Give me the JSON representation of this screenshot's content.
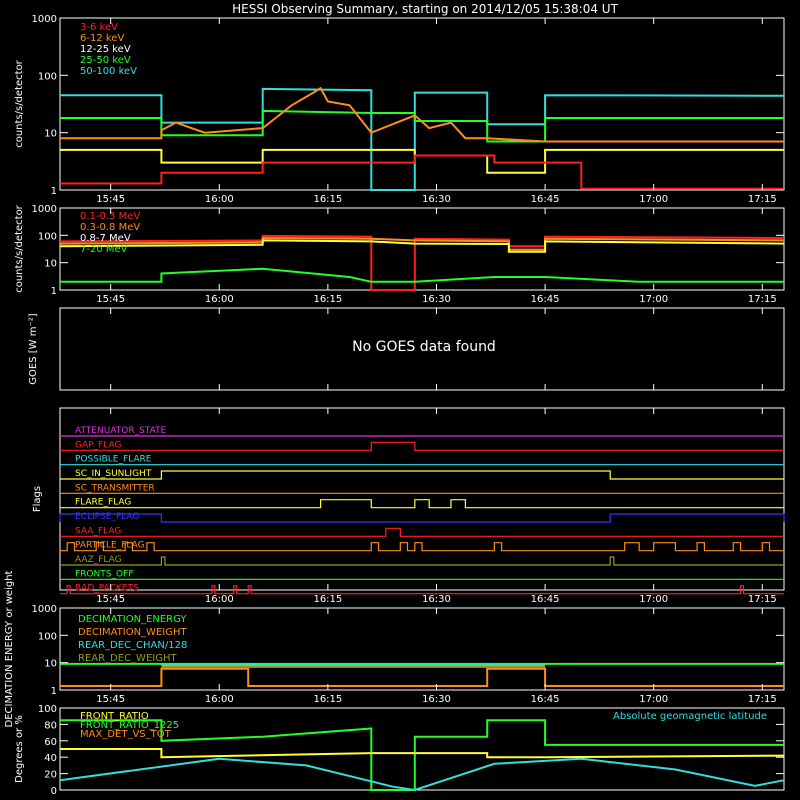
{
  "title": "HESSI Observing Summary, starting on 2014/12/05 15:38:04 UT",
  "colors": {
    "red": "#ff2020",
    "orange": "#ff8c1a",
    "yellow": "#ffff33",
    "green": "#22ff22",
    "cyan": "#33dddd",
    "magenta": "#dd33dd",
    "blue": "#3333ff",
    "olive": "#999922",
    "white": "#ffffff"
  },
  "time_axis": {
    "start_min": 0,
    "end_min": 100,
    "tick_minutes": [
      7,
      22,
      37,
      52,
      67,
      82,
      97
    ],
    "tick_labels": [
      "15:45",
      "16:00",
      "16:15",
      "16:30",
      "16:45",
      "17:00",
      "17:15"
    ]
  },
  "chart_data": [
    {
      "id": "lightcurve-low",
      "type": "line",
      "ylabel": "counts/s/detector",
      "ylog": true,
      "ylim": [
        1,
        1000
      ],
      "ytick_labels": [
        "1",
        "10",
        "100",
        "1000"
      ],
      "legend": [
        "3-6 keV",
        "6-12 keV",
        "12-25 keV",
        "25-50 keV",
        "50-100 keV"
      ],
      "legend_colors": [
        "red",
        "orange",
        "white",
        "green",
        "cyan"
      ],
      "series": [
        {
          "color": "cyan",
          "values": [
            [
              0,
              45
            ],
            [
              14,
              45
            ],
            [
              14,
              15
            ],
            [
              28,
              15
            ],
            [
              28,
              58
            ],
            [
              43,
              55
            ],
            [
              43,
              0
            ],
            [
              49,
              0
            ],
            [
              49,
              50
            ],
            [
              59,
              50
            ],
            [
              59,
              14
            ],
            [
              67,
              14
            ],
            [
              67,
              45
            ],
            [
              100,
              44
            ]
          ]
        },
        {
          "color": "green",
          "values": [
            [
              0,
              18
            ],
            [
              14,
              18
            ],
            [
              14,
              9
            ],
            [
              28,
              9
            ],
            [
              28,
              24
            ],
            [
              43,
              22
            ],
            [
              49,
              22
            ],
            [
              49,
              16
            ],
            [
              59,
              16
            ],
            [
              59,
              7
            ],
            [
              67,
              7
            ],
            [
              67,
              18
            ],
            [
              100,
              18
            ]
          ]
        },
        {
          "color": "orange",
          "values": [
            [
              0,
              8
            ],
            [
              14,
              8
            ],
            [
              14,
              11
            ],
            [
              16,
              15
            ],
            [
              20,
              10
            ],
            [
              28,
              12
            ],
            [
              32,
              30
            ],
            [
              35,
              50
            ],
            [
              36,
              60
            ],
            [
              37,
              35
            ],
            [
              40,
              30
            ],
            [
              43,
              10
            ],
            [
              49,
              20
            ],
            [
              51,
              12
            ],
            [
              54,
              15
            ],
            [
              56,
              8
            ],
            [
              59,
              8
            ],
            [
              67,
              7
            ],
            [
              100,
              7
            ]
          ]
        },
        {
          "color": "yellow",
          "values": [
            [
              0,
              5
            ],
            [
              14,
              5
            ],
            [
              14,
              3
            ],
            [
              28,
              3
            ],
            [
              28,
              5
            ],
            [
              43,
              5
            ],
            [
              49,
              5
            ],
            [
              49,
              4
            ],
            [
              59,
              4
            ],
            [
              59,
              2
            ],
            [
              67,
              2
            ],
            [
              67,
              5
            ],
            [
              100,
              5
            ]
          ]
        },
        {
          "color": "red",
          "values": [
            [
              0,
              1.3
            ],
            [
              14,
              1.3
            ],
            [
              14,
              2
            ],
            [
              28,
              2
            ],
            [
              28,
              3
            ],
            [
              43,
              3
            ],
            [
              49,
              3
            ],
            [
              49,
              4
            ],
            [
              60,
              4
            ],
            [
              60,
              3
            ],
            [
              72,
              3
            ],
            [
              72,
              1.05
            ],
            [
              100,
              1.05
            ]
          ]
        }
      ]
    },
    {
      "id": "lightcurve-high",
      "type": "line",
      "ylabel": "counts/s/detector",
      "ylog": true,
      "ylim": [
        1,
        1000
      ],
      "ytick_labels": [
        "1",
        "10",
        "100",
        "1000"
      ],
      "legend": [
        "0.1-0.3 MeV",
        "0.3-0.8 MeV",
        "0.8-7 MeV",
        "7-20 MeV"
      ],
      "legend_colors": [
        "red",
        "orange",
        "white",
        "green"
      ],
      "series": [
        {
          "color": "red",
          "values": [
            [
              0,
              60
            ],
            [
              28,
              65
            ],
            [
              28,
              95
            ],
            [
              43,
              90
            ],
            [
              43,
              0
            ],
            [
              49,
              0
            ],
            [
              49,
              75
            ],
            [
              62,
              70
            ],
            [
              62,
              40
            ],
            [
              67,
              40
            ],
            [
              67,
              90
            ],
            [
              100,
              80
            ]
          ]
        },
        {
          "color": "orange",
          "values": [
            [
              0,
              50
            ],
            [
              28,
              55
            ],
            [
              28,
              80
            ],
            [
              43,
              75
            ],
            [
              49,
              65
            ],
            [
              62,
              60
            ],
            [
              62,
              30
            ],
            [
              67,
              30
            ],
            [
              67,
              75
            ],
            [
              100,
              65
            ]
          ]
        },
        {
          "color": "yellow",
          "values": [
            [
              0,
              40
            ],
            [
              28,
              45
            ],
            [
              28,
              65
            ],
            [
              43,
              60
            ],
            [
              49,
              50
            ],
            [
              62,
              48
            ],
            [
              62,
              25
            ],
            [
              67,
              25
            ],
            [
              67,
              60
            ],
            [
              100,
              50
            ]
          ]
        },
        {
          "color": "green",
          "values": [
            [
              0,
              2
            ],
            [
              14,
              2
            ],
            [
              14,
              4
            ],
            [
              28,
              6
            ],
            [
              40,
              3
            ],
            [
              43,
              2
            ],
            [
              49,
              2
            ],
            [
              60,
              3
            ],
            [
              67,
              3
            ],
            [
              80,
              2
            ],
            [
              100,
              2
            ]
          ]
        }
      ]
    },
    {
      "id": "goes",
      "type": "line",
      "ylabel": "GOES [W m⁻²]",
      "message": "No GOES data found"
    },
    {
      "id": "flags",
      "type": "line",
      "ylabel": "Flags",
      "flags": [
        {
          "name": "ATTENUATOR_STATE",
          "color": "magenta",
          "segments": []
        },
        {
          "name": "GAP_FLAG",
          "color": "red",
          "segments": [
            [
              43,
              49
            ]
          ]
        },
        {
          "name": "POSSIBLE_FLARE",
          "color": "cyan",
          "segments": []
        },
        {
          "name": "SC_IN_SUNLIGHT",
          "color": "yellow",
          "segments": [
            [
              14,
              76
            ]
          ]
        },
        {
          "name": "SC_TRANSMITTER",
          "color": "orange",
          "segments": []
        },
        {
          "name": "FLARE_FLAG",
          "color": "yellow",
          "segments": [
            [
              36,
              43
            ],
            [
              49,
              51
            ],
            [
              54,
              56
            ]
          ]
        },
        {
          "name": "ECLIPSE_FLAG",
          "color": "blue",
          "segments": [
            [
              0,
              14
            ],
            [
              76,
              100
            ]
          ]
        },
        {
          "name": "SAA_FLAG",
          "color": "red",
          "segments": [
            [
              45,
              47
            ]
          ]
        },
        {
          "name": "PARTICLE_FLAG",
          "color": "orange",
          "segments": [
            [
              1,
              2
            ],
            [
              5,
              6
            ],
            [
              9,
              10
            ],
            [
              12,
              13
            ],
            [
              43,
              44
            ],
            [
              47,
              48
            ],
            [
              49,
              50
            ],
            [
              60,
              61
            ],
            [
              78,
              80
            ],
            [
              82,
              85
            ],
            [
              88,
              89
            ],
            [
              93,
              94
            ],
            [
              97,
              98
            ]
          ]
        },
        {
          "name": "AAZ_FLAG",
          "color": "olive",
          "segments": [
            [
              14,
              14.5
            ],
            [
              76,
              76.5
            ]
          ]
        },
        {
          "name": "FRONTS_OFF",
          "color": "green",
          "segments": []
        },
        {
          "name": "BAD_PACKETS",
          "color": "red",
          "segments": [
            [
              1,
              1.4
            ],
            [
              21,
              21.4
            ],
            [
              24,
              24.4
            ],
            [
              26,
              26.4
            ],
            [
              94,
              94.4
            ]
          ]
        }
      ]
    },
    {
      "id": "decimation",
      "type": "line",
      "ylabel": "DECIMATION ENERGY or weight",
      "ylog": true,
      "ylim": [
        1,
        1000
      ],
      "ytick_labels": [
        "1",
        "10",
        "100",
        "1000"
      ],
      "legend": [
        "DECIMATION_ENERGY",
        "DECIMATION_WEIGHT",
        "REAR_DEC_CHAN/128",
        "REAR_DEC_WEIGHT"
      ],
      "legend_colors": [
        "green",
        "orange",
        "cyan",
        "olive"
      ],
      "series": [
        {
          "color": "green",
          "values": [
            [
              0,
              9
            ],
            [
              100,
              9
            ]
          ]
        },
        {
          "color": "orange",
          "values": [
            [
              0,
              1.4
            ],
            [
              14,
              1.4
            ],
            [
              14,
              6
            ],
            [
              26,
              6
            ],
            [
              26,
              1.4
            ],
            [
              59,
              1.4
            ],
            [
              59,
              6
            ],
            [
              67,
              6
            ],
            [
              67,
              1.4
            ],
            [
              100,
              1.4
            ]
          ]
        },
        {
          "color": "cyan",
          "values": [
            [
              14,
              8
            ],
            [
              26,
              8
            ],
            [
              59,
              8
            ],
            [
              67,
              8
            ]
          ]
        },
        {
          "color": "olive",
          "values": [
            [
              14,
              7
            ],
            [
              26,
              7
            ],
            [
              59,
              7
            ],
            [
              67,
              7
            ]
          ]
        }
      ]
    },
    {
      "id": "ratios",
      "type": "line",
      "ylabel": "Degrees or %",
      "ylim": [
        0,
        100
      ],
      "ytick_labels": [
        "0",
        "20",
        "40",
        "60",
        "80",
        "100"
      ],
      "legend": [
        "FRONT_RATIO",
        "FRONT_RATIO_1225",
        "MAX_DET_VS_TOT"
      ],
      "legend_colors": [
        "yellow",
        "green",
        "orange"
      ],
      "note": "Absolute geomagnetic latitude",
      "series": [
        {
          "color": "green",
          "values": [
            [
              0,
              85
            ],
            [
              14,
              85
            ],
            [
              14,
              60
            ],
            [
              28,
              65
            ],
            [
              43,
              75
            ],
            [
              43,
              0
            ],
            [
              49,
              0
            ],
            [
              49,
              65
            ],
            [
              59,
              65
            ],
            [
              59,
              85
            ],
            [
              67,
              85
            ],
            [
              67,
              55
            ],
            [
              100,
              55
            ]
          ]
        },
        {
          "color": "yellow",
          "values": [
            [
              0,
              50
            ],
            [
              14,
              50
            ],
            [
              14,
              40
            ],
            [
              43,
              45
            ],
            [
              49,
              45
            ],
            [
              59,
              45
            ],
            [
              59,
              40
            ],
            [
              67,
              40
            ],
            [
              100,
              42
            ]
          ]
        },
        {
          "color": "cyan",
          "values": [
            [
              0,
              12
            ],
            [
              22,
              38
            ],
            [
              34,
              30
            ],
            [
              46,
              4
            ],
            [
              49,
              0
            ],
            [
              60,
              32
            ],
            [
              72,
              38
            ],
            [
              85,
              25
            ],
            [
              96,
              5
            ],
            [
              100,
              12
            ]
          ]
        }
      ]
    }
  ]
}
